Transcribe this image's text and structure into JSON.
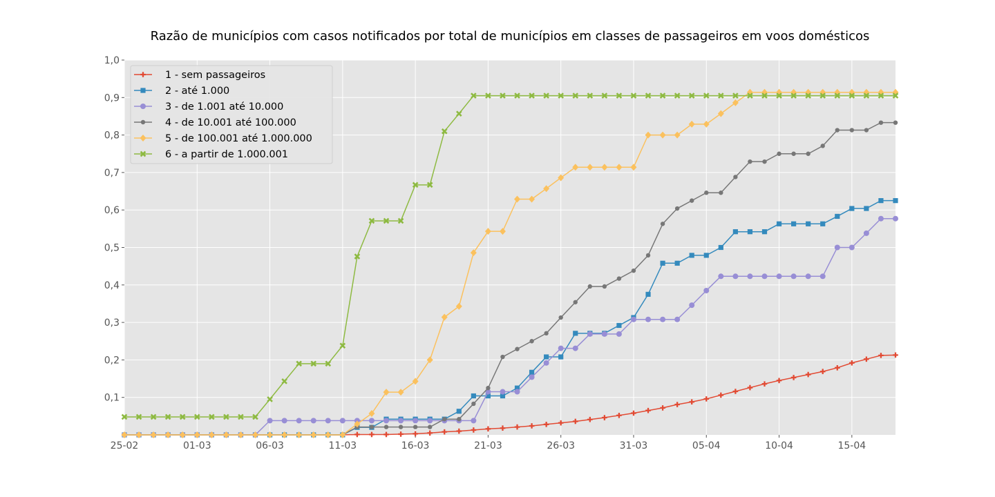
{
  "chart_data": {
    "type": "line",
    "title": "Razão de municípios com casos notificados por total de municípios em classes de passageiros em voos domésticos",
    "xlabel": "",
    "ylabel": "",
    "x": [
      "25-02",
      "26-02",
      "27-02",
      "28-02",
      "29-02",
      "01-03",
      "02-03",
      "03-03",
      "04-03",
      "05-03",
      "06-03",
      "07-03",
      "08-03",
      "09-03",
      "10-03",
      "11-03",
      "12-03",
      "13-03",
      "14-03",
      "15-03",
      "16-03",
      "17-03",
      "18-03",
      "19-03",
      "20-03",
      "21-03",
      "22-03",
      "23-03",
      "24-03",
      "25-03",
      "26-03",
      "27-03",
      "28-03",
      "29-03",
      "30-03",
      "31-03",
      "01-04",
      "02-04",
      "03-04",
      "04-04",
      "05-04",
      "06-04",
      "07-04",
      "08-04",
      "09-04",
      "10-04",
      "11-04",
      "12-04",
      "13-04",
      "14-04",
      "15-04",
      "16-04",
      "17-04",
      "18-04"
    ],
    "x_ticks": [
      "25-02",
      "01-03",
      "06-03",
      "11-03",
      "16-03",
      "21-03",
      "26-03",
      "31-03",
      "05-04",
      "10-04",
      "15-04"
    ],
    "y_ticks": [
      "0,1",
      "0,2",
      "0,3",
      "0,4",
      "0,5",
      "0,6",
      "0,7",
      "0,8",
      "0,9",
      "1,0"
    ],
    "ylim": [
      0,
      1.0
    ],
    "grid": true,
    "legend_position": "top-left",
    "series": [
      {
        "name": "1 - sem passageiros",
        "color": "#E24A33",
        "marker": "plus",
        "values": [
          0,
          0,
          0,
          0,
          0,
          0,
          0,
          0,
          0,
          0,
          0,
          0,
          0,
          0,
          0,
          0,
          0.001,
          0.001,
          0.001,
          0.002,
          0.003,
          0.005,
          0.008,
          0.01,
          0.013,
          0.016,
          0.018,
          0.021,
          0.024,
          0.028,
          0.032,
          0.036,
          0.041,
          0.046,
          0.052,
          0.058,
          0.065,
          0.072,
          0.081,
          0.088,
          0.096,
          0.106,
          0.116,
          0.126,
          0.136,
          0.145,
          0.153,
          0.161,
          0.169,
          0.179,
          0.192,
          0.202,
          0.212,
          0.213
        ]
      },
      {
        "name": "2 - até 1.000",
        "color": "#348ABD",
        "marker": "square",
        "values": [
          0,
          0,
          0,
          0,
          0,
          0,
          0,
          0,
          0,
          0,
          0,
          0,
          0,
          0,
          0,
          0,
          0.02,
          0.02,
          0.042,
          0.042,
          0.042,
          0.042,
          0.042,
          0.063,
          0.104,
          0.104,
          0.104,
          0.125,
          0.167,
          0.208,
          0.208,
          0.271,
          0.271,
          0.271,
          0.292,
          0.313,
          0.375,
          0.458,
          0.458,
          0.479,
          0.479,
          0.5,
          0.542,
          0.542,
          0.542,
          0.563,
          0.563,
          0.563,
          0.563,
          0.583,
          0.604,
          0.604,
          0.625,
          0.625
        ]
      },
      {
        "name": "3 - de 1.001 até 10.000",
        "color": "#988ED5",
        "marker": "circle",
        "values": [
          0,
          0,
          0,
          0,
          0,
          0,
          0,
          0,
          0,
          0,
          0.038,
          0.038,
          0.038,
          0.038,
          0.038,
          0.038,
          0.038,
          0.038,
          0.038,
          0.038,
          0.038,
          0.038,
          0.038,
          0.038,
          0.038,
          0.115,
          0.115,
          0.115,
          0.154,
          0.192,
          0.231,
          0.231,
          0.269,
          0.269,
          0.269,
          0.308,
          0.308,
          0.308,
          0.308,
          0.346,
          0.385,
          0.423,
          0.423,
          0.423,
          0.423,
          0.423,
          0.423,
          0.423,
          0.423,
          0.5,
          0.5,
          0.538,
          0.577,
          0.577
        ]
      },
      {
        "name": "4 - de 10.001 até 100.000",
        "color": "#777777",
        "marker": "dot",
        "values": [
          0,
          0,
          0,
          0,
          0,
          0,
          0,
          0,
          0,
          0,
          0,
          0,
          0,
          0,
          0,
          0,
          0.021,
          0.021,
          0.021,
          0.021,
          0.021,
          0.021,
          0.042,
          0.042,
          0.083,
          0.125,
          0.208,
          0.229,
          0.25,
          0.271,
          0.313,
          0.354,
          0.396,
          0.396,
          0.417,
          0.438,
          0.479,
          0.563,
          0.604,
          0.625,
          0.646,
          0.646,
          0.688,
          0.729,
          0.729,
          0.75,
          0.75,
          0.75,
          0.771,
          0.813,
          0.813,
          0.813,
          0.833,
          0.833
        ]
      },
      {
        "name": "5 - de 100.001 até 1.000.000",
        "color": "#FBC15E",
        "marker": "diamond",
        "values": [
          0,
          0,
          0,
          0,
          0,
          0,
          0,
          0,
          0,
          0,
          0,
          0,
          0,
          0,
          0,
          0,
          0.029,
          0.057,
          0.114,
          0.114,
          0.143,
          0.2,
          0.314,
          0.343,
          0.486,
          0.543,
          0.543,
          0.629,
          0.629,
          0.657,
          0.686,
          0.714,
          0.714,
          0.714,
          0.714,
          0.714,
          0.8,
          0.8,
          0.8,
          0.829,
          0.829,
          0.857,
          0.886,
          0.914,
          0.914,
          0.914,
          0.914,
          0.914,
          0.914,
          0.914,
          0.914,
          0.914,
          0.914,
          0.914
        ]
      },
      {
        "name": "6 - a partir de 1.000.001",
        "color": "#8EBA42",
        "marker": "x",
        "values": [
          0.048,
          0.048,
          0.048,
          0.048,
          0.048,
          0.048,
          0.048,
          0.048,
          0.048,
          0.048,
          0.095,
          0.143,
          0.19,
          0.19,
          0.19,
          0.238,
          0.476,
          0.571,
          0.571,
          0.571,
          0.667,
          0.667,
          0.81,
          0.857,
          0.905,
          0.905,
          0.905,
          0.905,
          0.905,
          0.905,
          0.905,
          0.905,
          0.905,
          0.905,
          0.905,
          0.905,
          0.905,
          0.905,
          0.905,
          0.905,
          0.905,
          0.905,
          0.905,
          0.905,
          0.905,
          0.905,
          0.905,
          0.905,
          0.905,
          0.905,
          0.905,
          0.905,
          0.905,
          0.905
        ]
      }
    ]
  }
}
